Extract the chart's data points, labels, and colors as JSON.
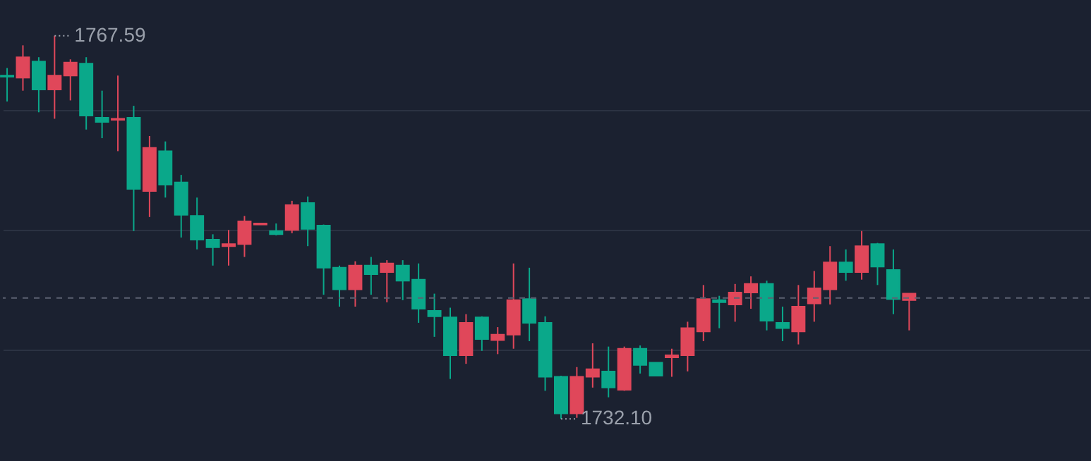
{
  "chart_data": {
    "type": "candlestick",
    "categories": [
      null,
      null,
      null,
      null,
      null,
      null,
      null,
      null,
      null,
      null,
      null,
      null,
      null,
      null,
      null,
      null,
      null,
      null,
      null,
      null,
      null,
      null,
      null,
      null,
      null,
      null,
      null,
      null,
      null,
      null,
      null,
      null,
      null,
      null,
      null,
      null,
      null,
      null,
      null,
      null,
      null,
      null,
      null,
      null,
      null,
      null,
      null,
      null,
      null,
      null,
      null,
      null,
      null,
      null,
      null,
      null,
      null,
      null
    ],
    "ohlc": [
      [
        1763.9,
        1764.6,
        1761.5,
        1763.8
      ],
      [
        1763.7,
        1766.7,
        1762.5,
        1765.6
      ],
      [
        1765.2,
        1765.6,
        1760.5,
        1762.6
      ],
      [
        1762.6,
        1767.59,
        1759.9,
        1763.9
      ],
      [
        1763.9,
        1765.4,
        1761.6,
        1765.1
      ],
      [
        1765.0,
        1765.6,
        1758.9,
        1760.2
      ],
      [
        1760.0,
        1762.5,
        1758.1,
        1759.6
      ],
      [
        1759.8,
        1763.9,
        1756.9,
        1759.9
      ],
      [
        1760.0,
        1761.1,
        1749.5,
        1753.4
      ],
      [
        1753.2,
        1758.3,
        1750.8,
        1757.2
      ],
      [
        1756.9,
        1757.8,
        1752.6,
        1753.8
      ],
      [
        1754.0,
        1754.7,
        1748.9,
        1751.0
      ],
      [
        1750.9,
        1752.6,
        1747.8,
        1748.7
      ],
      [
        1748.7,
        1749.2,
        1746.3,
        1748.0
      ],
      [
        1748.1,
        1749.6,
        1746.3,
        1748.3
      ],
      [
        1748.3,
        1750.9,
        1747.1,
        1750.4
      ],
      [
        1750.1,
        1750.2,
        1750.1,
        1750.2
      ],
      [
        1749.5,
        1750.2,
        1749.1,
        1749.2
      ],
      [
        1749.6,
        1752.3,
        1749.3,
        1751.9
      ],
      [
        1752.1,
        1752.7,
        1748.1,
        1749.7
      ],
      [
        1750.0,
        1750.1,
        1743.6,
        1746.1
      ],
      [
        1746.1,
        1746.3,
        1742.5,
        1744.1
      ],
      [
        1744.1,
        1746.7,
        1742.5,
        1746.3
      ],
      [
        1746.3,
        1747.1,
        1743.6,
        1745.5
      ],
      [
        1745.7,
        1746.8,
        1742.9,
        1746.5
      ],
      [
        1746.3,
        1746.8,
        1743.1,
        1744.9
      ],
      [
        1745.0,
        1746.5,
        1741.0,
        1742.3
      ],
      [
        1742.1,
        1743.7,
        1739.7,
        1741.6
      ],
      [
        1741.5,
        1742.4,
        1735.8,
        1738.0
      ],
      [
        1738.0,
        1741.8,
        1737.2,
        1741.0
      ],
      [
        1741.5,
        1741.6,
        1738.4,
        1739.5
      ],
      [
        1739.4,
        1740.6,
        1738.1,
        1739.9
      ],
      [
        1739.9,
        1746.5,
        1738.6,
        1743.1
      ],
      [
        1743.2,
        1746.1,
        1739.3,
        1741.0
      ],
      [
        1741.0,
        1741.6,
        1734.7,
        1736.0
      ],
      [
        1736.0,
        1736.1,
        1732.1,
        1732.6
      ],
      [
        1732.6,
        1736.9,
        1732.2,
        1736.0
      ],
      [
        1736.0,
        1739.1,
        1735.0,
        1736.7
      ],
      [
        1736.5,
        1738.8,
        1734.1,
        1735.0
      ],
      [
        1734.8,
        1738.8,
        1734.7,
        1738.6
      ],
      [
        1738.6,
        1738.9,
        1736.3,
        1737.1
      ],
      [
        1737.3,
        1737.3,
        1736.1,
        1736.1
      ],
      [
        1737.8,
        1738.6,
        1736.0,
        1738.0
      ],
      [
        1738.0,
        1741.1,
        1736.5,
        1740.5
      ],
      [
        1740.2,
        1744.5,
        1739.3,
        1743.2
      ],
      [
        1743.1,
        1743.5,
        1740.5,
        1742.9
      ],
      [
        1742.7,
        1744.6,
        1741.1,
        1743.8
      ],
      [
        1743.8,
        1745.3,
        1742.3,
        1744.6
      ],
      [
        1744.6,
        1744.9,
        1740.3,
        1741.2
      ],
      [
        1741.0,
        1742.5,
        1739.3,
        1740.5
      ],
      [
        1740.2,
        1744.5,
        1739.0,
        1742.5
      ],
      [
        1742.8,
        1745.8,
        1741.1,
        1744.2
      ],
      [
        1744.1,
        1748.1,
        1742.7,
        1746.6
      ],
      [
        1746.6,
        1747.8,
        1744.9,
        1745.7
      ],
      [
        1745.7,
        1749.5,
        1745.0,
        1748.1
      ],
      [
        1748.3,
        1748.4,
        1744.5,
        1746.2
      ],
      [
        1745.9,
        1747.8,
        1741.8,
        1743.2
      ],
      [
        1743.1,
        1743.7,
        1740.3,
        1743.7
      ]
    ],
    "colors": [
      "#0aa88a",
      "#e0475a",
      "#0aa88a",
      "#e0475a",
      "#e0475a",
      "#0aa88a",
      "#0aa88a",
      "#e0475a",
      "#0aa88a",
      "#e0475a",
      "#0aa88a",
      "#0aa88a",
      "#0aa88a",
      "#0aa88a",
      "#e0475a",
      "#e0475a",
      "#e0475a",
      "#0aa88a",
      "#e0475a",
      "#0aa88a",
      "#0aa88a",
      "#0aa88a",
      "#e0475a",
      "#0aa88a",
      "#e0475a",
      "#0aa88a",
      "#0aa88a",
      "#0aa88a",
      "#0aa88a",
      "#e0475a",
      "#0aa88a",
      "#e0475a",
      "#e0475a",
      "#0aa88a",
      "#0aa88a",
      "#0aa88a",
      "#e0475a",
      "#e0475a",
      "#0aa88a",
      "#e0475a",
      "#0aa88a",
      "#0aa88a",
      "#e0475a",
      "#e0475a",
      "#e0475a",
      "#0aa88a",
      "#e0475a",
      "#e0475a",
      "#0aa88a",
      "#0aa88a",
      "#e0475a",
      "#e0475a",
      "#e0475a",
      "#0aa88a",
      "#e0475a",
      "#0aa88a",
      "#0aa88a",
      "#e0475a"
    ],
    "ylim": [
      1728.2,
      1770.9
    ],
    "yticks": [
      {
        "value": 1738.5,
        "label": null
      },
      {
        "value": 1749.6,
        "label": null
      },
      {
        "value": 1760.7,
        "label": null
      }
    ],
    "grid": "y",
    "tick_labels": false,
    "ref_lines": [
      {
        "axis": "y",
        "value": 1743.3,
        "color": "#5c6272",
        "line_style": "dashed"
      }
    ],
    "annotations": [
      "1767.59",
      "1732.10"
    ]
  }
}
